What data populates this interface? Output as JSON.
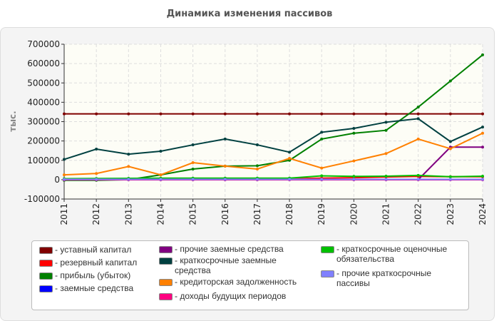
{
  "chart_data": {
    "type": "line",
    "title": "Динамика изменения пассивов",
    "ylabel": "тыс.",
    "ylim": [
      -100000,
      700000
    ],
    "yticks": [
      "-100000",
      "0",
      "100000",
      "200000",
      "300000",
      "400000",
      "500000",
      "600000",
      "700000"
    ],
    "categories": [
      "2011",
      "2012",
      "2013",
      "2014",
      "2015",
      "2016",
      "2017",
      "2018",
      "2019",
      "2020",
      "2021",
      "2022",
      "2023",
      "2024"
    ],
    "grid": true,
    "legend": "bottom",
    "series": [
      {
        "name": "уставный капитал",
        "color": "#800000",
        "values": [
          340000,
          340000,
          340000,
          340000,
          340000,
          340000,
          340000,
          340000,
          340000,
          340000,
          340000,
          340000,
          340000,
          340000
        ]
      },
      {
        "name": "резервный капитал",
        "color": "#ff0000",
        "values": [
          0,
          0,
          0,
          0,
          0,
          0,
          0,
          5000,
          8000,
          10000,
          14000,
          17000,
          15000,
          15000
        ]
      },
      {
        "name": "прибыль (убыток)",
        "color": "#008000",
        "values": [
          -3000,
          -3000,
          0,
          25000,
          55000,
          70000,
          72000,
          100000,
          210000,
          240000,
          255000,
          375000,
          510000,
          645000
        ]
      },
      {
        "name": "заемные средства",
        "color": "#0000ff",
        "values": [
          0,
          0,
          0,
          0,
          0,
          0,
          0,
          0,
          0,
          0,
          0,
          0,
          0,
          0
        ]
      },
      {
        "name": "прочие заемные средства",
        "color": "#800080",
        "values": [
          0,
          0,
          0,
          0,
          0,
          0,
          0,
          0,
          0,
          0,
          0,
          0,
          168000,
          168000
        ]
      },
      {
        "name": "краткосрочные заемные средства",
        "color": "#004040",
        "values": [
          105000,
          158000,
          132000,
          147000,
          180000,
          210000,
          180000,
          142000,
          245000,
          265000,
          297000,
          315000,
          197000,
          272000
        ]
      },
      {
        "name": "кредиторская задолженность",
        "color": "#ff8000",
        "values": [
          25000,
          32000,
          68000,
          25000,
          88000,
          70000,
          55000,
          110000,
          60000,
          97000,
          135000,
          210000,
          160000,
          240000
        ]
      },
      {
        "name": "доходы будущих периодов",
        "color": "#ff0080",
        "values": [
          0,
          0,
          0,
          0,
          0,
          0,
          0,
          0,
          0,
          0,
          0,
          0,
          0,
          0
        ]
      },
      {
        "name": "краткосрочные оценочные обязательства",
        "color": "#00c000",
        "values": [
          5000,
          6000,
          7000,
          8000,
          8000,
          8000,
          8000,
          8000,
          20000,
          17000,
          18000,
          22000,
          15000,
          18000
        ]
      },
      {
        "name": "прочие краткосрочные пассивы",
        "color": "#8080ff",
        "values": [
          2000,
          2000,
          2000,
          2000,
          2000,
          2000,
          2000,
          2000,
          2000,
          2000,
          2000,
          2000,
          2000,
          2000
        ]
      }
    ]
  }
}
